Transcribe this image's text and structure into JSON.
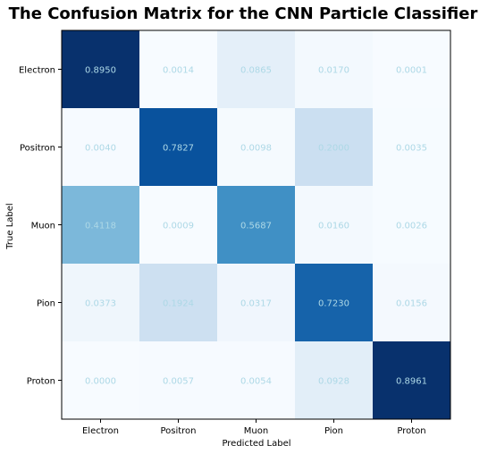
{
  "chart_data": {
    "type": "heatmap",
    "title": "The Confusion Matrix for the CNN Particle Classifier",
    "xlabel": "Predicted Label",
    "ylabel": "True Label",
    "x_categories": [
      "Electron",
      "Positron",
      "Muon",
      "Pion",
      "Proton"
    ],
    "y_categories": [
      "Electron",
      "Positron",
      "Muon",
      "Pion",
      "Proton"
    ],
    "values": [
      [
        0.895,
        0.0014,
        0.0865,
        0.017,
        0.0001
      ],
      [
        0.004,
        0.7827,
        0.0098,
        0.2,
        0.0035
      ],
      [
        0.4118,
        0.0009,
        0.5687,
        0.016,
        0.0026
      ],
      [
        0.0373,
        0.1924,
        0.0317,
        0.723,
        0.0156
      ],
      [
        0.0,
        0.0057,
        0.0054,
        0.0928,
        0.8961
      ]
    ],
    "value_labels": [
      [
        "0.8950",
        "0.0014",
        "0.0865",
        "0.0170",
        "0.0001"
      ],
      [
        "0.0040",
        "0.7827",
        "0.0098",
        "0.2000",
        "0.0035"
      ],
      [
        "0.4118",
        "0.0009",
        "0.5687",
        "0.0160",
        "0.0026"
      ],
      [
        "0.0373",
        "0.1924",
        "0.0317",
        "0.7230",
        "0.0156"
      ],
      [
        "0.0000",
        "0.0057",
        "0.0054",
        "0.0928",
        "0.8961"
      ]
    ],
    "colormap": "Blues",
    "value_range": [
      0,
      0.9
    ],
    "label_color": "#add8e6",
    "grid": false
  }
}
